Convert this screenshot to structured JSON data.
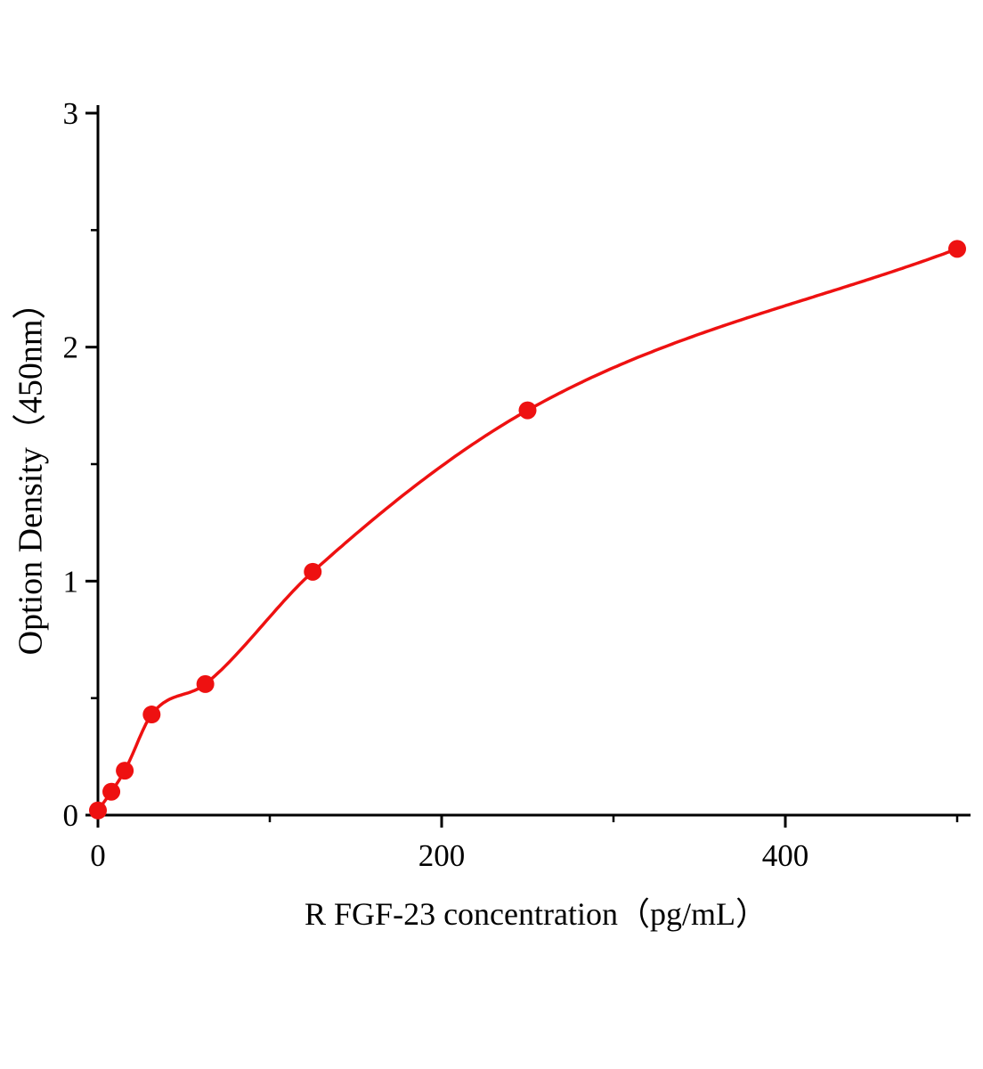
{
  "figure": {
    "background": "#ffffff",
    "axis_color": "#000000"
  },
  "chart_data": {
    "type": "scatter",
    "title": "",
    "xlabel": "R FGF-23  concentration（pg/mL）",
    "ylabel": "Option Density（450nm）",
    "xlim": [
      0,
      500
    ],
    "ylim": [
      0,
      3
    ],
    "x_major_ticks": [
      0,
      200,
      400
    ],
    "x_minor_ticks": [
      100,
      300,
      500
    ],
    "y_major_ticks": [
      0,
      1,
      2,
      3
    ],
    "y_minor_ticks": [
      0.5,
      1.5,
      2.5
    ],
    "grid": false,
    "legend": false,
    "series": [
      {
        "name": "R FGF-23 standard curve",
        "color": "#ee1111",
        "marker": "circle",
        "marker_size": 10,
        "curve": "smooth-fit",
        "points": [
          {
            "x": 0,
            "y": 0.02
          },
          {
            "x": 7.8,
            "y": 0.1
          },
          {
            "x": 15.6,
            "y": 0.19
          },
          {
            "x": 31.25,
            "y": 0.43
          },
          {
            "x": 62.5,
            "y": 0.56
          },
          {
            "x": 125,
            "y": 1.04
          },
          {
            "x": 250,
            "y": 1.73
          },
          {
            "x": 500,
            "y": 2.42
          }
        ]
      }
    ]
  }
}
